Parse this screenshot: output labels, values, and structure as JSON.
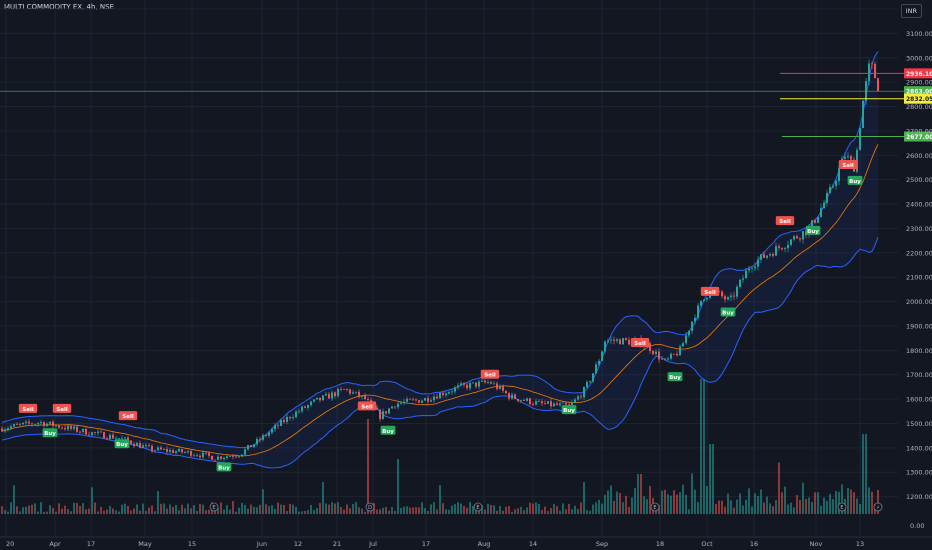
{
  "header": {
    "title": "MULTI COMMODITY EX, 4h, NSE",
    "currency": "INR"
  },
  "colors": {
    "up": "#26a69a",
    "down": "#ef5350",
    "band": "#2962ff",
    "basis": "#f57c00",
    "yellow": "#f5eb3b",
    "green_line": "#4caf50",
    "red_line": "#f23645"
  },
  "chart_data": {
    "type": "candlestick",
    "symbol": "MULTI COMMODITY EX",
    "timeframe": "4h",
    "exchange": "NSE",
    "ylim": [
      1100,
      3200
    ],
    "y_ticks": [
      1200,
      1300,
      1400,
      1500,
      1600,
      1700,
      1800,
      1900,
      2000,
      2100,
      2200,
      2300,
      2400,
      2500,
      2600,
      2700,
      2800,
      2900,
      3000,
      3100,
      3200
    ],
    "y_tick_labels": [
      "1200.00",
      "1300.00",
      "1400.00",
      "1500.00",
      "1600.00",
      "1700.00",
      "1800.00",
      "1900.00",
      "2000.00",
      "2100.00",
      "2200.00",
      "2300.00",
      "2400.00",
      "2500.00",
      "2600.00",
      "2700.00",
      "2800.00",
      "2900.00",
      "3000.00",
      "3100.00",
      "3200.00"
    ],
    "volume_axis_label": "0.00",
    "x_tick_labels": [
      "20",
      "Apr",
      "17",
      "May",
      "15",
      "Jun",
      "12",
      "21",
      "Jul",
      "17",
      "Aug",
      "14",
      "Sep",
      "18",
      "Oct",
      "16",
      "Nov",
      "13"
    ],
    "price_trend": [
      [
        0,
        1480
      ],
      [
        40,
        1505
      ],
      [
        80,
        1470
      ],
      [
        120,
        1440
      ],
      [
        150,
        1395
      ],
      [
        190,
        1380
      ],
      [
        215,
        1360
      ],
      [
        240,
        1375
      ],
      [
        265,
        1450
      ],
      [
        290,
        1530
      ],
      [
        315,
        1590
      ],
      [
        345,
        1640
      ],
      [
        365,
        1600
      ],
      [
        380,
        1530
      ],
      [
        395,
        1580
      ],
      [
        425,
        1600
      ],
      [
        460,
        1650
      ],
      [
        490,
        1670
      ],
      [
        510,
        1610
      ],
      [
        540,
        1580
      ],
      [
        570,
        1570
      ],
      [
        585,
        1640
      ],
      [
        598,
        1750
      ],
      [
        605,
        1840
      ],
      [
        620,
        1840
      ],
      [
        645,
        1830
      ],
      [
        665,
        1750
      ],
      [
        680,
        1800
      ],
      [
        695,
        1950
      ],
      [
        710,
        2050
      ],
      [
        730,
        2000
      ],
      [
        750,
        2150
      ],
      [
        770,
        2200
      ],
      [
        790,
        2250
      ],
      [
        810,
        2300
      ],
      [
        830,
        2450
      ],
      [
        845,
        2600
      ],
      [
        855,
        2550
      ],
      [
        862,
        2800
      ],
      [
        870,
        2980
      ],
      [
        877,
        2900
      ],
      [
        880,
        2850
      ]
    ],
    "markers": [
      {
        "text": "Sell",
        "type": "sell",
        "x": 28,
        "price": 1560
      },
      {
        "text": "Sell",
        "type": "sell",
        "x": 62,
        "price": 1560
      },
      {
        "text": "Buy",
        "type": "buy",
        "x": 50,
        "price": 1460
      },
      {
        "text": "Sell",
        "type": "sell",
        "x": 128,
        "price": 1530
      },
      {
        "text": "Buy",
        "type": "buy",
        "x": 122,
        "price": 1415
      },
      {
        "text": "Buy",
        "type": "buy",
        "x": 224,
        "price": 1320
      },
      {
        "text": "Sell",
        "type": "sell",
        "x": 367,
        "price": 1570
      },
      {
        "text": "Buy",
        "type": "buy",
        "x": 388,
        "price": 1470
      },
      {
        "text": "Sell",
        "type": "sell",
        "x": 490,
        "price": 1700
      },
      {
        "text": "Buy",
        "type": "buy",
        "x": 569,
        "price": 1555
      },
      {
        "text": "Sell",
        "type": "sell",
        "x": 640,
        "price": 1830
      },
      {
        "text": "Buy",
        "type": "buy",
        "x": 675,
        "price": 1690
      },
      {
        "text": "Sell",
        "type": "sell",
        "x": 710,
        "price": 2040
      },
      {
        "text": "Buy",
        "type": "buy",
        "x": 728,
        "price": 1955
      },
      {
        "text": "Sell",
        "type": "sell",
        "x": 785,
        "price": 2330
      },
      {
        "text": "Buy",
        "type": "buy",
        "x": 813,
        "price": 2290
      },
      {
        "text": "Sell",
        "type": "sell",
        "x": 848,
        "price": 2560
      },
      {
        "text": "Buy",
        "type": "buy",
        "x": 855,
        "price": 2495
      }
    ],
    "price_lines": [
      {
        "label": "2936.10",
        "price": 2936.1,
        "color": "#f23645",
        "x_start": 780
      },
      {
        "label": "2863.00",
        "price": 2863.0,
        "color": "#4caf50",
        "x_start": 0
      },
      {
        "label": "2832.05",
        "price": 2832.05,
        "color": "#f5eb3b",
        "x_start": 780
      },
      {
        "label": "2677.00",
        "price": 2677.0,
        "color": "#4caf50",
        "x_start": 782
      }
    ],
    "event_badges": [
      {
        "text": "E",
        "x": 214
      },
      {
        "text": "D",
        "x": 370
      },
      {
        "text": "E",
        "x": 478
      },
      {
        "text": "E",
        "x": 655
      },
      {
        "text": "E",
        "x": 842
      },
      {
        "text": "⚡",
        "x": 878
      }
    ],
    "grid": true
  }
}
